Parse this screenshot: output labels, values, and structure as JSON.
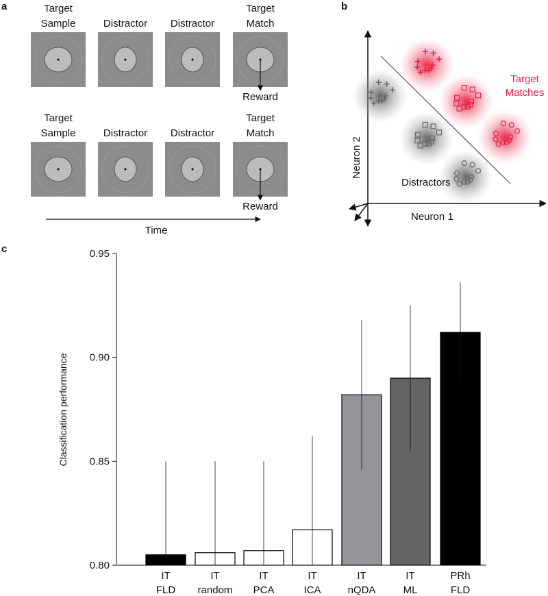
{
  "panel_labels": [
    "a",
    "b",
    "c"
  ],
  "task": {
    "rows": [
      {
        "frames": [
          [
            "Target",
            "Sample"
          ],
          [
            "Distractor"
          ],
          [
            "Distractor"
          ],
          [
            "Target",
            "Match"
          ]
        ],
        "reward": "Reward"
      },
      {
        "frames": [
          [
            "Target",
            "Sample"
          ],
          [
            "Distractor"
          ],
          [
            "Distractor"
          ],
          [
            "Target",
            "Match"
          ]
        ],
        "reward": "Reward"
      }
    ],
    "time_axis": "Time"
  },
  "space": {
    "target_label": [
      "Target",
      "Matches"
    ],
    "distractor_label": "Distractors",
    "x_axis": "Neuron 1",
    "y_axis": "Neuron 2"
  },
  "chart_data": {
    "type": "bar",
    "y_label": "Classification performance",
    "categories": [
      [
        "IT",
        "FLD"
      ],
      [
        "IT",
        "random"
      ],
      [
        "IT",
        "PCA"
      ],
      [
        "IT",
        "ICA"
      ],
      [
        "IT",
        "nQDA"
      ],
      [
        "IT",
        "ML"
      ],
      [
        "PRh",
        "FLD"
      ]
    ],
    "values": [
      0.805,
      0.806,
      0.807,
      0.817,
      0.882,
      0.89,
      0.912
    ],
    "errors": [
      0.045,
      0.044,
      0.043,
      0.045,
      0.036,
      0.035,
      0.024
    ],
    "colors": [
      "#000000",
      "#ffffff",
      "#ffffff",
      "#ffffff",
      "#939598",
      "#636466",
      "#000000"
    ],
    "ylim": [
      0.8,
      0.95
    ],
    "yticks": [
      {
        "value": 0.8,
        "label": "0.80"
      },
      0.85,
      {
        "value": 0.9,
        "label": "0.90"
      },
      0.95
    ]
  }
}
